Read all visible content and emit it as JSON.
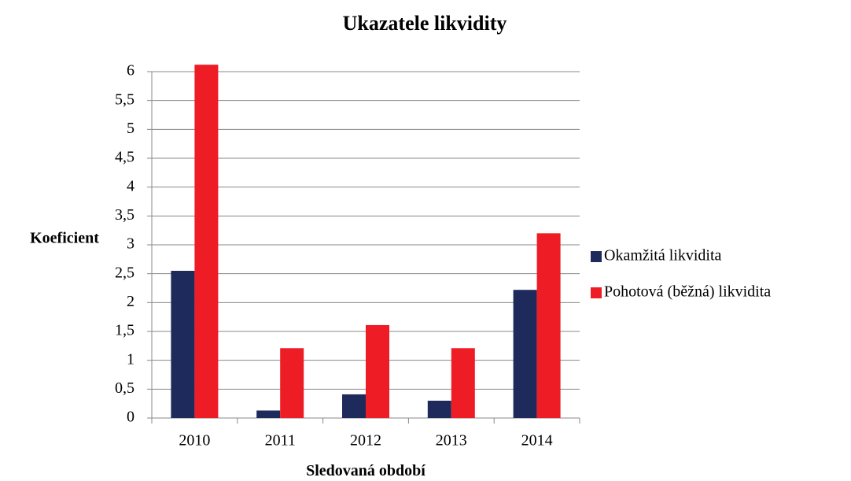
{
  "chart_data": {
    "type": "bar",
    "title": "Ukazatele likvidity",
    "x_label": "Sledovaná období",
    "y_label": "Koeficient",
    "categories": [
      "2010",
      "2011",
      "2012",
      "2013",
      "2014"
    ],
    "series": [
      {
        "name": "Okamžitá likvidita",
        "color": "#1f2a5c",
        "values": [
          2.55,
          0.13,
          0.41,
          0.3,
          2.22
        ]
      },
      {
        "name": "Pohotová (běžná) likvidita",
        "color": "#ee1c25",
        "values": [
          6.12,
          1.21,
          1.61,
          1.21,
          3.2
        ]
      }
    ],
    "ylim": [
      0,
      6
    ],
    "yticks": [
      0,
      {
        "value": 0.5,
        "label": "0,5"
      },
      1,
      {
        "value": 1.5,
        "label": "1,5"
      },
      2,
      {
        "value": 2.5,
        "label": "2,5"
      },
      3,
      {
        "value": 3.5,
        "label": "3,5"
      },
      4,
      {
        "value": 4.5,
        "label": "4,5"
      },
      5,
      {
        "value": 5.5,
        "label": "5,5"
      },
      6
    ],
    "grid": true,
    "legend": "right"
  }
}
